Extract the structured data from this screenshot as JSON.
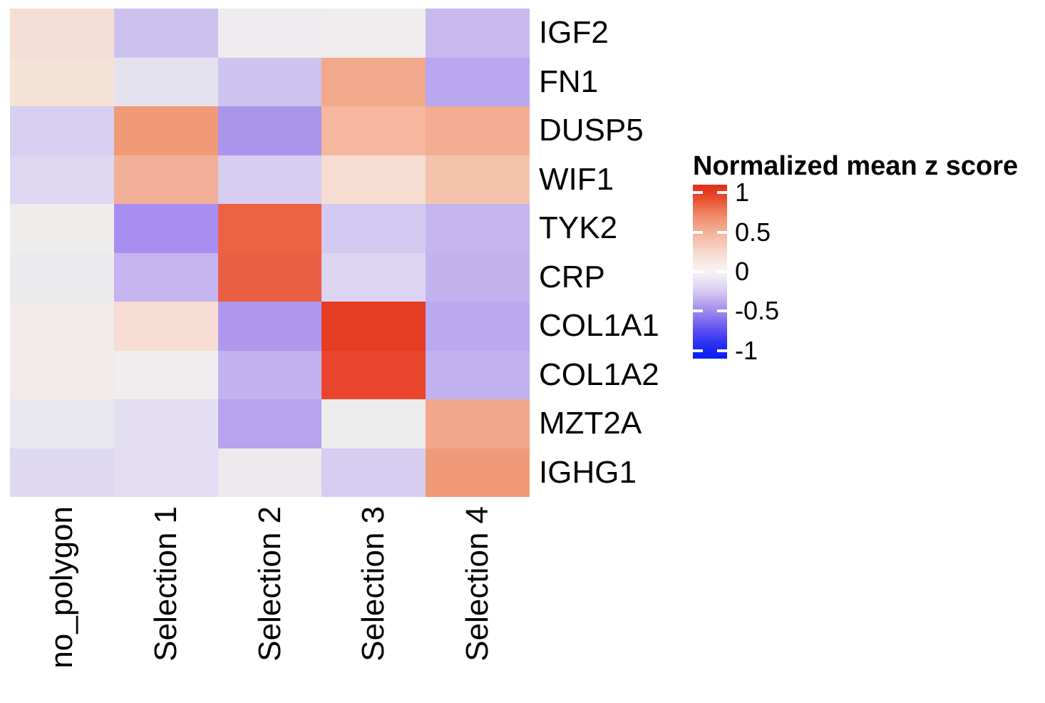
{
  "chart_data": {
    "type": "heatmap",
    "rows": [
      "IGF2",
      "FN1",
      "DUSP5",
      "WIF1",
      "TYK2",
      "CRP",
      "COL1A1",
      "COL1A2",
      "MZT2A",
      "IGHG1"
    ],
    "columns": [
      "no_polygon",
      "Selection 1",
      "Selection 2",
      "Selection 3",
      "Selection 4"
    ],
    "values": [
      [
        0.25,
        -0.31,
        0.02,
        0.02,
        -0.36
      ],
      [
        0.22,
        -0.12,
        -0.3,
        0.57,
        -0.47
      ],
      [
        -0.24,
        0.62,
        -0.58,
        0.48,
        0.55
      ],
      [
        -0.18,
        0.52,
        -0.25,
        0.25,
        0.42
      ],
      [
        0.03,
        -0.62,
        0.82,
        -0.27,
        -0.39
      ],
      [
        0.02,
        -0.4,
        0.84,
        -0.2,
        -0.41
      ],
      [
        0.1,
        0.26,
        -0.55,
        1.0,
        -0.45
      ],
      [
        0.1,
        0.03,
        -0.41,
        0.97,
        -0.41
      ],
      [
        -0.05,
        -0.15,
        -0.48,
        0.01,
        0.57
      ],
      [
        -0.18,
        -0.16,
        0.04,
        -0.25,
        0.62
      ]
    ],
    "cell_colors": [
      [
        "#f3ddd4",
        "#cdc2ee",
        "#eeecee",
        "#efedee",
        "#c8b9ee"
      ],
      [
        "#f5e2d7",
        "#e5e2f0",
        "#cec4ef",
        "#f2a88b",
        "#b9a6ef"
      ],
      [
        "#d7cff0",
        "#f09a78",
        "#ab95ec",
        "#f5b79e",
        "#f3ad92"
      ],
      [
        "#ded7f2",
        "#f3b098",
        "#d6cdf1",
        "#f7ddd1",
        "#f5c3ac"
      ],
      [
        "#efecec",
        "#a78ef0",
        "#ec6243",
        "#d3caf1",
        "#c4b5ee"
      ],
      [
        "#ebebed",
        "#c5b4f0",
        "#ea6044",
        "#ddd4f2",
        "#c2b2ee"
      ],
      [
        "#f0ebe9",
        "#f6dcd2",
        "#b098ee",
        "#e63c24",
        "#bba9ef"
      ],
      [
        "#f0ebe9",
        "#efedee",
        "#c3b2f0",
        "#e8452c",
        "#c2b1ef"
      ],
      [
        "#e9e7ee",
        "#e3def1",
        "#b7a3ee",
        "#ececec",
        "#f2a78a"
      ],
      [
        "#ded9f1",
        "#e2ddf2",
        "#eceaec",
        "#d6cdf0",
        "#f09a79"
      ]
    ],
    "grid": false,
    "layout": {
      "legend_position": "right",
      "x_tick_rotation": 90,
      "background": "#ffffff"
    },
    "legend": {
      "title": "Normalized mean z score",
      "tick_labels": [
        "1",
        "0.5",
        "0",
        "-0.5",
        "-1"
      ],
      "tick_values": [
        1,
        0.5,
        0,
        -0.5,
        -1
      ],
      "scale_limits": [
        -1.1,
        1.1
      ],
      "colors": {
        "high": "#e63b20",
        "mid": "#f8f4f4",
        "low": "#1626f3"
      },
      "gradient_stops": [
        {
          "pos": 0,
          "color": "#e03018"
        },
        {
          "pos": 4.5,
          "color": "#e63b20"
        },
        {
          "pos": 10,
          "color": "#ea5c3b"
        },
        {
          "pos": 16,
          "color": "#ee815f"
        },
        {
          "pos": 21.6,
          "color": "#f19a7c"
        },
        {
          "pos": 27.3,
          "color": "#f3b098"
        },
        {
          "pos": 33,
          "color": "#f5c5b2"
        },
        {
          "pos": 39,
          "color": "#f6d9cd"
        },
        {
          "pos": 44.5,
          "color": "#f7e8e2"
        },
        {
          "pos": 50,
          "color": "#f8f4f4"
        },
        {
          "pos": 55.5,
          "color": "#e8e2f4"
        },
        {
          "pos": 61,
          "color": "#d8ccf2"
        },
        {
          "pos": 67,
          "color": "#bcaaef"
        },
        {
          "pos": 72.7,
          "color": "#9d88ec"
        },
        {
          "pos": 78.4,
          "color": "#7d6cee"
        },
        {
          "pos": 84.1,
          "color": "#5a4df1"
        },
        {
          "pos": 89.8,
          "color": "#3337f3"
        },
        {
          "pos": 95.5,
          "color": "#1626f3"
        },
        {
          "pos": 100,
          "color": "#0c1ef2"
        }
      ]
    }
  }
}
